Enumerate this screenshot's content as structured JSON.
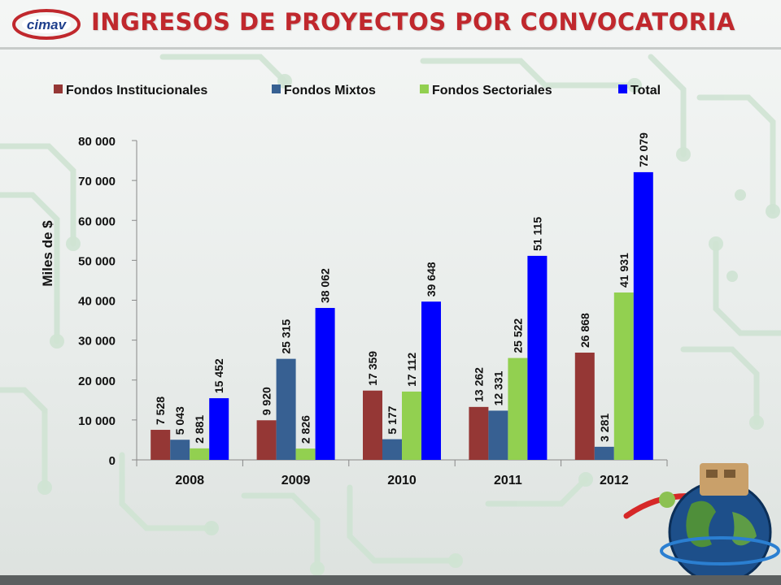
{
  "header": {
    "title": "INGRESOS DE PROYECTOS POR CONVOCATORIA",
    "logo_text": "cimav",
    "logo_color": "#1f3f8c",
    "accent": "#c0282d"
  },
  "chart_data": {
    "type": "bar",
    "title": "",
    "xlabel": "",
    "ylabel": "Miles de $",
    "ylim": [
      0,
      80000
    ],
    "yticks": [
      0,
      10000,
      20000,
      30000,
      40000,
      50000,
      60000,
      70000,
      80000
    ],
    "ytick_labels": [
      "0",
      "10 000",
      "20 000",
      "30 000",
      "40 000",
      "50 000",
      "60 000",
      "70 000",
      "80 000"
    ],
    "categories": [
      "2008",
      "2009",
      "2010",
      "2011",
      "2012"
    ],
    "legend_position": "top",
    "grid": false,
    "series": [
      {
        "name": "Fondos Institucionales",
        "color": "#953735",
        "values": [
          7528,
          9920,
          17359,
          13262,
          26868
        ],
        "labels": [
          "7 528",
          "9 920",
          "17 359",
          "13 262",
          "26 868"
        ]
      },
      {
        "name": "Fondos Mixtos",
        "color": "#376092",
        "values": [
          5043,
          25315,
          5177,
          12331,
          3281
        ],
        "labels": [
          "5 043",
          "25 315",
          "5 177",
          "12 331",
          "3 281"
        ]
      },
      {
        "name": "Fondos Sectoriales",
        "color": "#92d050",
        "values": [
          2881,
          2826,
          17112,
          25522,
          41931
        ],
        "labels": [
          "2 881",
          "2 826",
          "17 112",
          "25 522",
          "41 931"
        ]
      },
      {
        "name": "Total",
        "color": "#0000ff",
        "values": [
          15452,
          38062,
          39648,
          51115,
          72079
        ],
        "labels": [
          "15 452",
          "38 062",
          "39 648",
          "51 115",
          "72 079"
        ]
      }
    ]
  }
}
